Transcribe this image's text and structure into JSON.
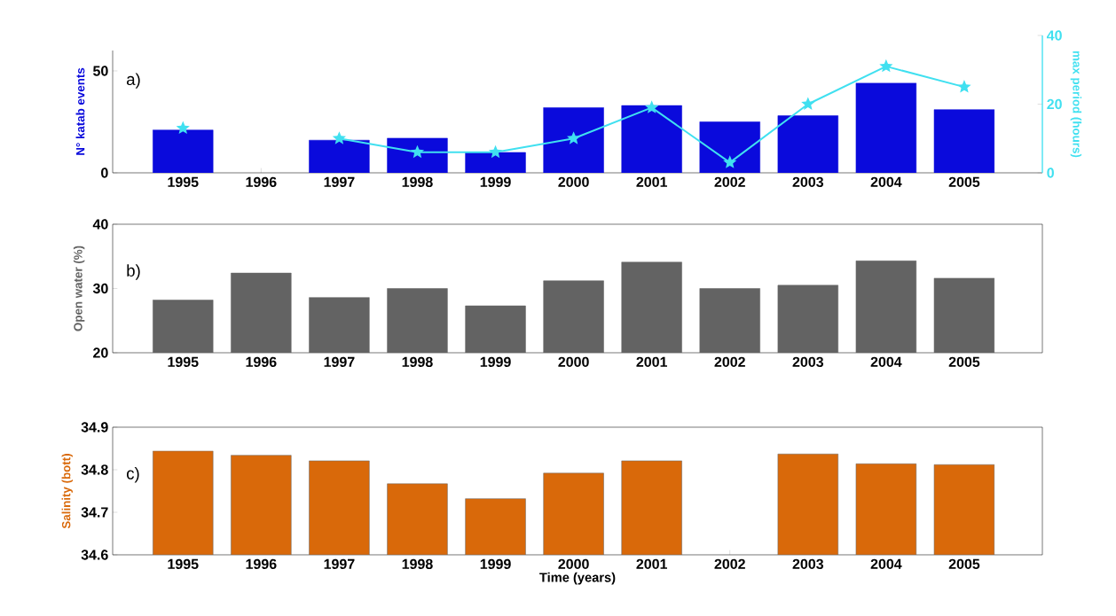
{
  "chart_data": [
    {
      "type": "bar",
      "categories": [
        "1995",
        "1996",
        "1997",
        "1998",
        "1999",
        "2000",
        "2001",
        "2002",
        "2003",
        "2004",
        "2005"
      ],
      "ylabel": "N° katab events",
      "y2label": "max period (hours)",
      "annotations": [
        "a)"
      ],
      "ylim": [
        0,
        60
      ],
      "yticks": [
        0,
        50
      ],
      "y2lim": [
        0,
        40
      ],
      "y2ticks": [
        0,
        20,
        40
      ],
      "series": [
        {
          "type": "bar",
          "color": "#0a0adc",
          "values": [
            21,
            null,
            16,
            17,
            10,
            32,
            33,
            25,
            28,
            44,
            31
          ]
        },
        {
          "type": "line",
          "axis": "y2",
          "color": "#40e0f0",
          "marker": "star",
          "values": [
            13,
            null,
            10,
            6,
            6,
            10,
            19,
            3,
            20,
            31,
            25
          ]
        }
      ]
    },
    {
      "type": "bar",
      "categories": [
        "1995",
        "1996",
        "1997",
        "1998",
        "1999",
        "2000",
        "2001",
        "2002",
        "2003",
        "2004",
        "2005"
      ],
      "ylabel": "Open water (%)",
      "annotations": [
        "b)"
      ],
      "ylim": [
        20,
        40
      ],
      "yticks": [
        20,
        30,
        40
      ],
      "series": [
        {
          "type": "bar",
          "color": "#636363",
          "values": [
            28.2,
            32.4,
            28.6,
            30,
            27.3,
            31.2,
            34.1,
            30,
            30.5,
            34.3,
            31.6
          ]
        }
      ]
    },
    {
      "type": "bar",
      "categories": [
        "1995",
        "1996",
        "1997",
        "1998",
        "1999",
        "2000",
        "2001",
        "2002",
        "2003",
        "2004",
        "2005"
      ],
      "ylabel": "Salinity (bott)",
      "xlabel": "Time (years)",
      "annotations": [
        "c)"
      ],
      "ylim": [
        34.6,
        34.9
      ],
      "yticks": [
        34.6,
        34.7,
        34.8,
        34.9
      ],
      "series": [
        {
          "type": "bar",
          "color": "#d9690a",
          "values": [
            34.844,
            34.834,
            34.821,
            34.767,
            34.732,
            34.792,
            34.821,
            null,
            34.837,
            34.814,
            34.812
          ]
        }
      ]
    }
  ]
}
